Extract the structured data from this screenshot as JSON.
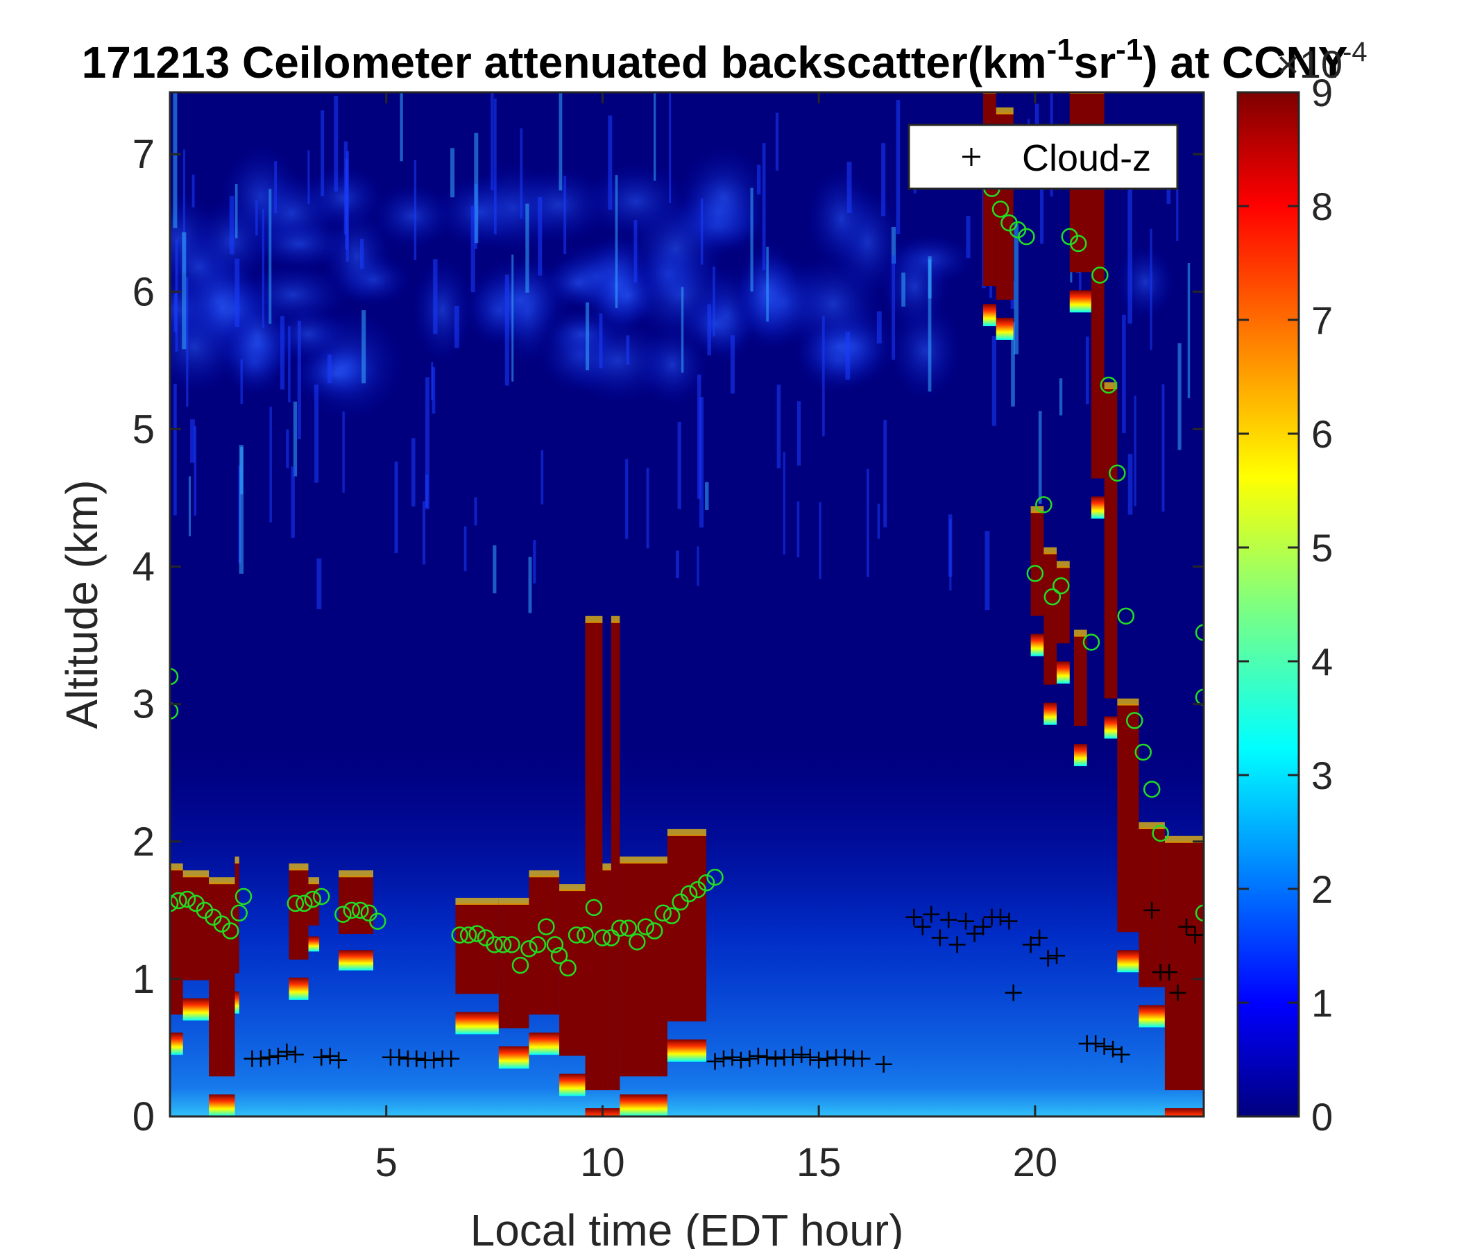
{
  "chart_data": {
    "type": "heatmap",
    "title": {
      "prefix": "171213 Ceilometer attenuated backscatter(km",
      "sup1": "-1",
      "middle": "sr",
      "sup2": "-1",
      "suffix": ") at CCNY"
    },
    "xlabel": "Local time (EDT hour)",
    "ylabel": "Altitude (km)",
    "xlim": [
      0,
      23.9
    ],
    "ylim": [
      0,
      7.45
    ],
    "xticks": [
      5,
      10,
      15,
      20
    ],
    "yticks": [
      0,
      1,
      2,
      3,
      4,
      5,
      6,
      7
    ],
    "colorbar": {
      "colormap": "jet",
      "range": [
        0,
        9
      ],
      "ticks": [
        0,
        1,
        2,
        3,
        4,
        5,
        6,
        7,
        8,
        9
      ],
      "exponent_label": "×10",
      "exponent_power": "-4"
    },
    "legend": {
      "position": "top-right",
      "entries": [
        "Cloud-z"
      ]
    },
    "background_color": "#00007f",
    "saturated_color": "#7f0000",
    "marker_colors": {
      "cloud_z": "#000000",
      "circles": "#22dd22"
    },
    "dense_layers": [
      {
        "t0": 0.0,
        "t1": 0.3,
        "base": 0.6,
        "top": 1.8
      },
      {
        "t0": 0.3,
        "t1": 0.9,
        "base": 0.85,
        "top": 1.75
      },
      {
        "t0": 0.9,
        "t1": 1.5,
        "base": 0.15,
        "top": 1.7
      },
      {
        "t0": 1.5,
        "t1": 1.6,
        "base": 0.9,
        "top": 1.85
      },
      {
        "t0": 2.75,
        "t1": 3.2,
        "base": 1.0,
        "top": 1.8
      },
      {
        "t0": 3.2,
        "t1": 3.45,
        "base": 1.3,
        "top": 1.7
      },
      {
        "t0": 3.9,
        "t1": 4.7,
        "base": 1.2,
        "top": 1.75
      },
      {
        "t0": 6.6,
        "t1": 7.6,
        "base": 0.75,
        "top": 1.55
      },
      {
        "t0": 7.6,
        "t1": 8.3,
        "base": 0.5,
        "top": 1.55
      },
      {
        "t0": 8.3,
        "t1": 9.0,
        "base": 0.6,
        "top": 1.75
      },
      {
        "t0": 9.0,
        "t1": 9.6,
        "base": 0.3,
        "top": 1.65
      },
      {
        "t0": 9.6,
        "t1": 10.0,
        "base": 0.05,
        "top": 3.6
      },
      {
        "t0": 10.0,
        "t1": 10.2,
        "base": 0.05,
        "top": 1.8
      },
      {
        "t0": 10.2,
        "t1": 10.4,
        "base": 0.05,
        "top": 3.6
      },
      {
        "t0": 10.4,
        "t1": 11.5,
        "base": 0.15,
        "top": 1.85
      },
      {
        "t0": 11.5,
        "t1": 12.4,
        "base": 0.55,
        "top": 2.05
      },
      {
        "t0": 18.8,
        "t1": 19.1,
        "base": 5.9,
        "top": 7.45
      },
      {
        "t0": 19.1,
        "t1": 19.5,
        "base": 5.8,
        "top": 7.3
      },
      {
        "t0": 19.9,
        "t1": 20.2,
        "base": 3.5,
        "top": 4.4
      },
      {
        "t0": 20.2,
        "t1": 20.5,
        "base": 3.0,
        "top": 4.1
      },
      {
        "t0": 20.5,
        "t1": 20.8,
        "base": 3.3,
        "top": 4.0
      },
      {
        "t0": 20.8,
        "t1": 21.3,
        "base": 6.0,
        "top": 7.45
      },
      {
        "t0": 20.9,
        "t1": 21.2,
        "base": 2.7,
        "top": 3.5
      },
      {
        "t0": 21.3,
        "t1": 21.6,
        "base": 4.5,
        "top": 7.45
      },
      {
        "t0": 21.6,
        "t1": 21.9,
        "base": 2.9,
        "top": 5.3
      },
      {
        "t0": 21.9,
        "t1": 22.4,
        "base": 1.2,
        "top": 3.0
      },
      {
        "t0": 22.4,
        "t1": 23.0,
        "base": 0.8,
        "top": 2.1
      },
      {
        "t0": 23.0,
        "t1": 23.9,
        "base": 0.05,
        "top": 2.0
      }
    ],
    "series": [
      {
        "name": "Cloud-z",
        "marker": "+",
        "x": [
          1.9,
          2.1,
          2.3,
          2.5,
          2.7,
          2.9,
          3.5,
          3.7,
          3.9,
          5.1,
          5.3,
          5.5,
          5.7,
          5.9,
          6.1,
          6.3,
          6.5,
          12.6,
          12.8,
          13.0,
          13.2,
          13.4,
          13.6,
          13.8,
          14.0,
          14.2,
          14.4,
          14.6,
          14.8,
          15.0,
          15.2,
          15.4,
          15.6,
          15.8,
          16.0,
          16.5,
          17.2,
          17.4,
          17.6,
          17.8,
          18.0,
          18.2,
          18.4,
          18.6,
          18.8,
          19.0,
          19.2,
          19.4,
          19.5,
          19.9,
          20.1,
          20.3,
          20.5,
          21.2,
          21.4,
          21.6,
          21.8,
          22.0,
          22.7,
          22.9,
          23.1,
          23.3,
          23.5,
          23.7,
          23.9
        ],
        "y": [
          0.42,
          0.42,
          0.43,
          0.44,
          0.47,
          0.45,
          0.43,
          0.44,
          0.41,
          0.43,
          0.43,
          0.42,
          0.42,
          0.41,
          0.41,
          0.42,
          0.42,
          0.4,
          0.42,
          0.43,
          0.41,
          0.42,
          0.44,
          0.43,
          0.42,
          0.43,
          0.43,
          0.45,
          0.43,
          0.41,
          0.42,
          0.43,
          0.43,
          0.42,
          0.42,
          0.38,
          1.45,
          1.38,
          1.47,
          1.3,
          1.43,
          1.25,
          1.42,
          1.33,
          1.38,
          1.45,
          1.45,
          1.42,
          0.9,
          1.25,
          1.3,
          1.15,
          1.17,
          0.53,
          0.53,
          0.51,
          0.49,
          0.45,
          1.5,
          1.05,
          1.05,
          0.9,
          1.38,
          1.32,
          1.32
        ]
      },
      {
        "name": "",
        "marker": "o",
        "x": [
          0.0,
          0.2,
          0.4,
          0.6,
          0.8,
          1.0,
          1.2,
          1.4,
          1.6,
          1.7,
          2.9,
          3.1,
          3.3,
          3.5,
          4.0,
          4.2,
          4.4,
          4.6,
          4.8,
          6.7,
          6.9,
          7.1,
          7.3,
          7.5,
          7.7,
          7.9,
          8.1,
          8.3,
          8.5,
          8.7,
          8.9,
          9.0,
          9.2,
          9.4,
          9.6,
          9.8,
          10.0,
          10.2,
          10.4,
          10.6,
          10.8,
          11.0,
          11.2,
          11.4,
          11.6,
          11.8,
          12.0,
          12.2,
          12.4,
          12.6,
          19.0,
          19.2,
          19.4,
          19.6,
          19.8,
          20.0,
          20.2,
          20.4,
          20.6,
          20.8,
          21.0,
          21.3,
          21.5,
          21.7,
          21.9,
          22.1,
          22.3,
          22.5,
          22.7,
          22.9,
          23.9,
          23.9,
          23.9,
          0.0,
          0.0
        ],
        "y": [
          1.55,
          1.57,
          1.58,
          1.55,
          1.5,
          1.45,
          1.4,
          1.35,
          1.48,
          1.6,
          1.55,
          1.55,
          1.58,
          1.6,
          1.47,
          1.5,
          1.5,
          1.48,
          1.42,
          1.32,
          1.32,
          1.33,
          1.3,
          1.25,
          1.25,
          1.25,
          1.1,
          1.22,
          1.25,
          1.38,
          1.25,
          1.17,
          1.08,
          1.32,
          1.32,
          1.52,
          1.3,
          1.3,
          1.37,
          1.37,
          1.27,
          1.38,
          1.35,
          1.48,
          1.46,
          1.56,
          1.62,
          1.65,
          1.7,
          1.74,
          6.75,
          6.6,
          6.5,
          6.45,
          6.4,
          3.95,
          4.45,
          3.78,
          3.86,
          6.4,
          6.35,
          3.45,
          6.12,
          5.32,
          4.68,
          3.64,
          2.88,
          2.65,
          2.38,
          2.06,
          3.52,
          3.05,
          1.48,
          3.2,
          2.95
        ]
      }
    ]
  }
}
